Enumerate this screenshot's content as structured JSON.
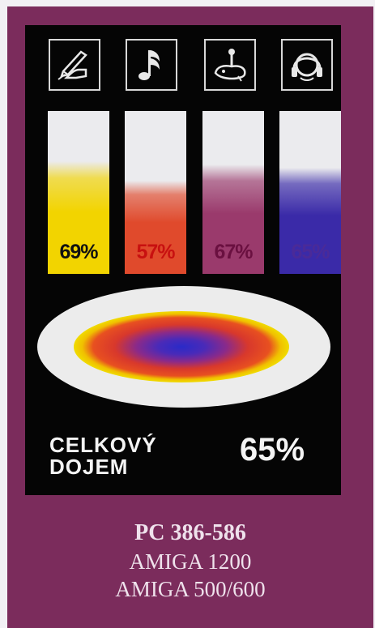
{
  "ratings": [
    {
      "category": "graphics",
      "icon": "hand-drawing-icon",
      "value": 69,
      "label": "69%",
      "color": "#f2d400",
      "text_color": "#111111"
    },
    {
      "category": "music",
      "icon": "music-note-icon",
      "value": 57,
      "label": "57%",
      "color": "#e04a2c",
      "text_color": "#c81010"
    },
    {
      "category": "gameplay",
      "icon": "joystick-icon",
      "value": 67,
      "label": "67%",
      "color": "#9a3a6c",
      "text_color": "#6a1040"
    },
    {
      "category": "sound",
      "icon": "headphones-icon",
      "value": 65,
      "label": "65%",
      "color": "#3a2aa8",
      "text_color": "#4a2a98"
    }
  ],
  "overall": {
    "label_line1": "CELKOVÝ",
    "label_line2": "DOJEM",
    "value": 65,
    "label": "65%"
  },
  "platforms": {
    "line1": "PC 386-586",
    "line2": "AMIGA 1200",
    "line3": "AMIGA 500/600"
  },
  "colors": {
    "frame": "#7b2c5c",
    "panel": "#050505",
    "ellipse_outer": "#ececec",
    "ellipse_yellow": "#f0dc00",
    "ellipse_red": "#e0402a",
    "ellipse_purple": "#8a2a8a",
    "ellipse_blue": "#2a2ac8"
  }
}
